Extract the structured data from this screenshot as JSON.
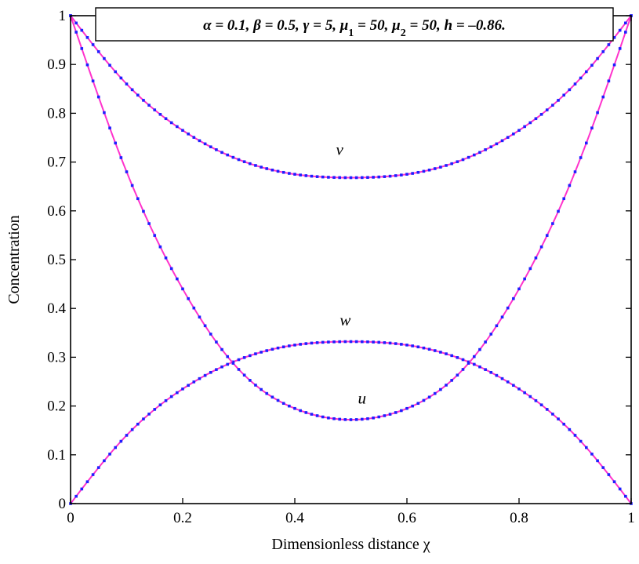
{
  "chart_data": {
    "type": "line",
    "title": "",
    "xlabel": "Dimensionless distance χ",
    "ylabel": "Concentration",
    "xlim": [
      0,
      1
    ],
    "ylim": [
      0,
      1
    ],
    "x_ticks": [
      "0",
      "0.2",
      "0.4",
      "0.6",
      "0.8",
      "1"
    ],
    "y_ticks": [
      "0",
      "0.1",
      "0.2",
      "0.3",
      "0.4",
      "0.5",
      "0.6",
      "0.7",
      "0.8",
      "0.9",
      "1"
    ],
    "grid": false,
    "legend": "none",
    "line_color": "#ff33cc",
    "marker_color": "#1f1fff",
    "annotation": "α = 0.1, β = 0.5, γ = 5, μ1 = 50, μ2 = 50, h = –0.86.",
    "x": [
      0,
      0.1,
      0.2,
      0.3,
      0.4,
      0.5,
      0.6,
      0.7,
      0.8,
      0.9,
      1
    ],
    "series": [
      {
        "name": "v",
        "values": [
          1.0,
          0.86,
          0.765,
          0.705,
          0.675,
          0.668,
          0.675,
          0.705,
          0.765,
          0.86,
          1.0
        ]
      },
      {
        "name": "w",
        "values": [
          0.0,
          0.14,
          0.235,
          0.295,
          0.325,
          0.332,
          0.325,
          0.295,
          0.235,
          0.14,
          0.0
        ]
      },
      {
        "name": "u",
        "values": [
          1.0,
          0.68,
          0.44,
          0.275,
          0.195,
          0.172,
          0.195,
          0.275,
          0.44,
          0.68,
          1.0
        ]
      }
    ]
  }
}
